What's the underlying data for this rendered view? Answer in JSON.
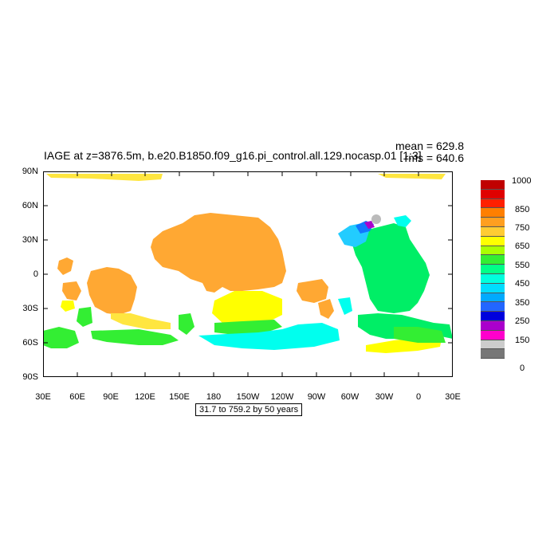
{
  "title": "IAGE at z=3876.5m, b.e20.B1850.f09_g16.pi_control.all.129.nocasp.01 [1:3]",
  "stats": {
    "mean": "mean = 629.8",
    "rms": "rms = 640.6"
  },
  "axes": {
    "y_ticks": [
      "90N",
      "60N",
      "30N",
      "0",
      "30S",
      "60S",
      "90S"
    ],
    "x_ticks": [
      "30E",
      "60E",
      "90E",
      "120E",
      "150E",
      "180",
      "150W",
      "120W",
      "90W",
      "60W",
      "30W",
      "0",
      "30E"
    ]
  },
  "range_label": "31.7 to 759.2 by 50 years",
  "colorbar": {
    "labels": [
      "1000",
      "850",
      "750",
      "650",
      "550",
      "450",
      "350",
      "250",
      "150",
      "0"
    ],
    "colors": [
      "#c00000",
      "#e00000",
      "#ff2000",
      "#ff7f00",
      "#ff9f20",
      "#ffcc33",
      "#ffff00",
      "#aaff00",
      "#33ee33",
      "#00ff88",
      "#00ffdd",
      "#00ddff",
      "#00aaff",
      "#2266ff",
      "#0000dd",
      "#aa00cc",
      "#ff00cc",
      "#cccccc",
      "#777777"
    ]
  },
  "map_colors": {
    "orange": "#ffa833",
    "yellow": "#ffff00",
    "lightyellow": "#ffe640",
    "green": "#33ee33",
    "seagreen": "#00ee66",
    "cyan": "#00ffee",
    "lightblue": "#22ccff",
    "blue": "#1177ff",
    "purple": "#aa00cc",
    "gray": "#bbbbbb"
  }
}
